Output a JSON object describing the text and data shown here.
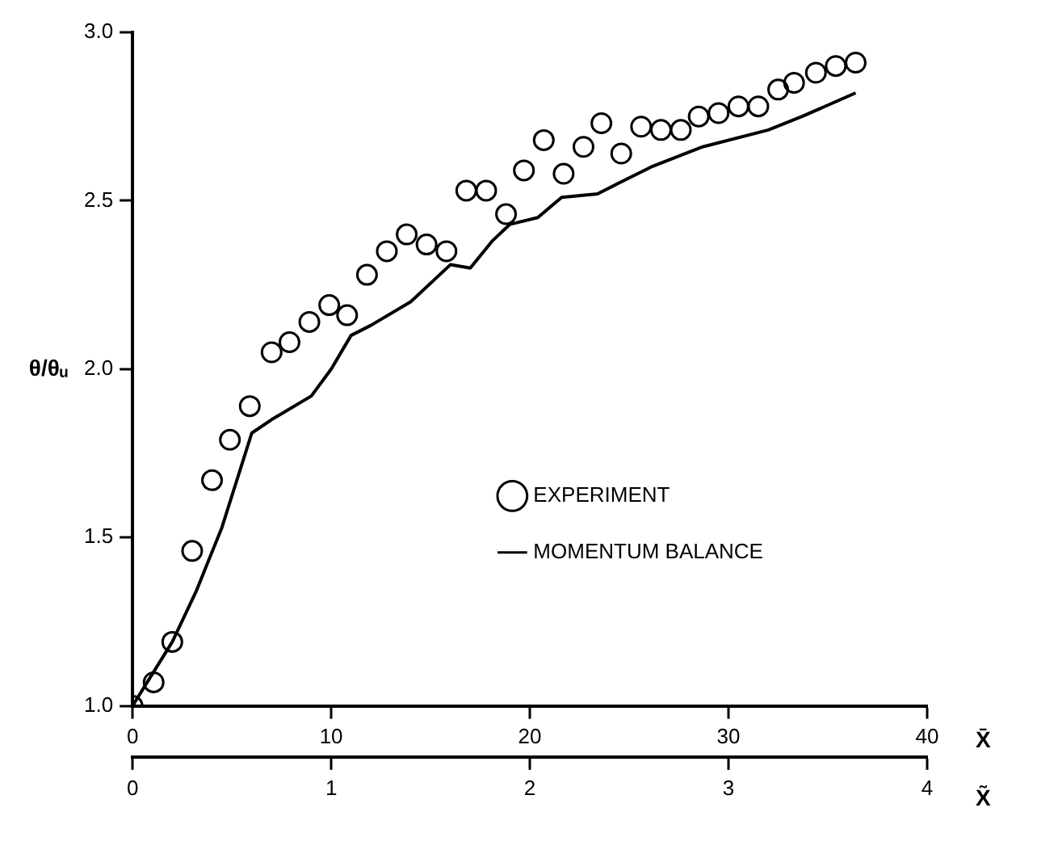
{
  "chart_data": {
    "type": "scatter",
    "xlabel": "X̄",
    "x2label": "X̃",
    "ylabel": "θ/θᵤ",
    "xlim": [
      0,
      40
    ],
    "xticks": [
      0,
      10,
      20,
      30,
      40
    ],
    "x2lim": [
      0,
      4
    ],
    "x2ticks": [
      0,
      1,
      2,
      3,
      4
    ],
    "ylim": [
      1.0,
      3.0
    ],
    "yticks": [
      {
        "value": 1.0,
        "label": "1.0"
      },
      {
        "value": 1.5,
        "label": "1.5"
      },
      {
        "value": 2.0,
        "label": "2.0"
      },
      {
        "value": 2.5,
        "label": "2.5"
      },
      {
        "value": 3.0,
        "label": "3.0"
      }
    ],
    "grid": false,
    "legend": "center right",
    "series": [
      {
        "name": "EXPERIMENT",
        "marker": "circle",
        "color": "#000000",
        "x": [
          0,
          1.06,
          2.0,
          3.0,
          4.0,
          4.9,
          5.9,
          7.0,
          7.9,
          8.9,
          9.9,
          10.8,
          11.8,
          12.8,
          13.8,
          14.8,
          15.8,
          16.8,
          17.8,
          18.8,
          19.7,
          20.7,
          21.7,
          22.7,
          23.6,
          24.6,
          25.6,
          26.6,
          27.6,
          28.5,
          29.5,
          30.5,
          31.5,
          32.5,
          33.3,
          34.4,
          35.4,
          36.4
        ],
        "values": [
          1.0,
          1.07,
          1.19,
          1.46,
          1.67,
          1.79,
          1.89,
          2.05,
          2.08,
          2.14,
          2.19,
          2.16,
          2.28,
          2.35,
          2.4,
          2.37,
          2.35,
          2.53,
          2.53,
          2.46,
          2.59,
          2.68,
          2.58,
          2.66,
          2.73,
          2.64,
          2.72,
          2.71,
          2.71,
          2.75,
          2.76,
          2.78,
          2.78,
          2.83,
          2.85,
          2.88,
          2.9,
          2.91
        ]
      },
      {
        "name": "MOMENTUM BALANCE",
        "type": "line",
        "marker": "none",
        "line_style": "solid",
        "color": "#000000",
        "x": [
          0,
          2,
          3.2,
          4.5,
          6,
          7,
          9,
          10,
          11,
          12,
          14,
          16,
          17,
          18.1,
          19,
          20.4,
          21.6,
          23.4,
          24.4,
          26.1,
          28.7,
          32,
          33.7,
          36.4
        ],
        "values": [
          1.0,
          1.19,
          1.34,
          1.53,
          1.81,
          1.85,
          1.92,
          2.0,
          2.1,
          2.13,
          2.2,
          2.31,
          2.3,
          2.38,
          2.43,
          2.45,
          2.51,
          2.52,
          2.55,
          2.6,
          2.66,
          2.71,
          2.75,
          2.82
        ]
      }
    ]
  }
}
